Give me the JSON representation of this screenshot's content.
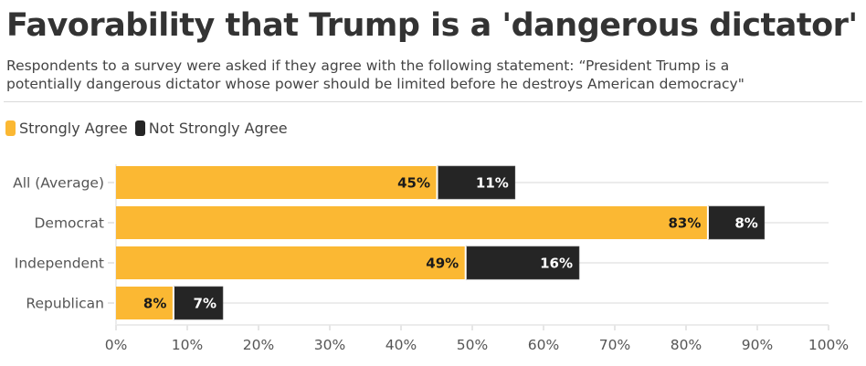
{
  "header": {
    "title": "Favorability that Trump is a 'dangerous dictator'",
    "subtitle_line1": "Respondents to a survey were asked if they agree with the following statement: “President Trump is a",
    "subtitle_line2": "potentially dangerous dictator whose power should be limited before he destroys American democracy\""
  },
  "chart_data": {
    "type": "bar",
    "orientation": "horizontal",
    "stacked": true,
    "title": "Favorability that Trump is a 'dangerous dictator'",
    "subtitle": "Respondents to a survey were asked if they agree with the following statement: “President Trump is a potentially dangerous dictator whose power should be limited before he destroys American democracy\"",
    "categories": [
      "All (Average)",
      "Democrat",
      "Independent",
      "Republican"
    ],
    "series": [
      {
        "name": "Strongly Agree",
        "color": "#FBB833",
        "label_color": "#1a1a1a",
        "values": [
          45,
          83,
          49,
          8
        ]
      },
      {
        "name": "Not Strongly Agree",
        "color": "#252525",
        "label_color": "#ffffff",
        "values": [
          11,
          8,
          16,
          7
        ]
      }
    ],
    "xlabel": "",
    "ylabel": "",
    "xlim": [
      0,
      100
    ],
    "x_ticks": [
      0,
      10,
      20,
      30,
      40,
      50,
      60,
      70,
      80,
      90,
      100
    ],
    "tick_suffix": "%",
    "value_suffix": "%",
    "grid": true,
    "legend_position": "top-left"
  }
}
